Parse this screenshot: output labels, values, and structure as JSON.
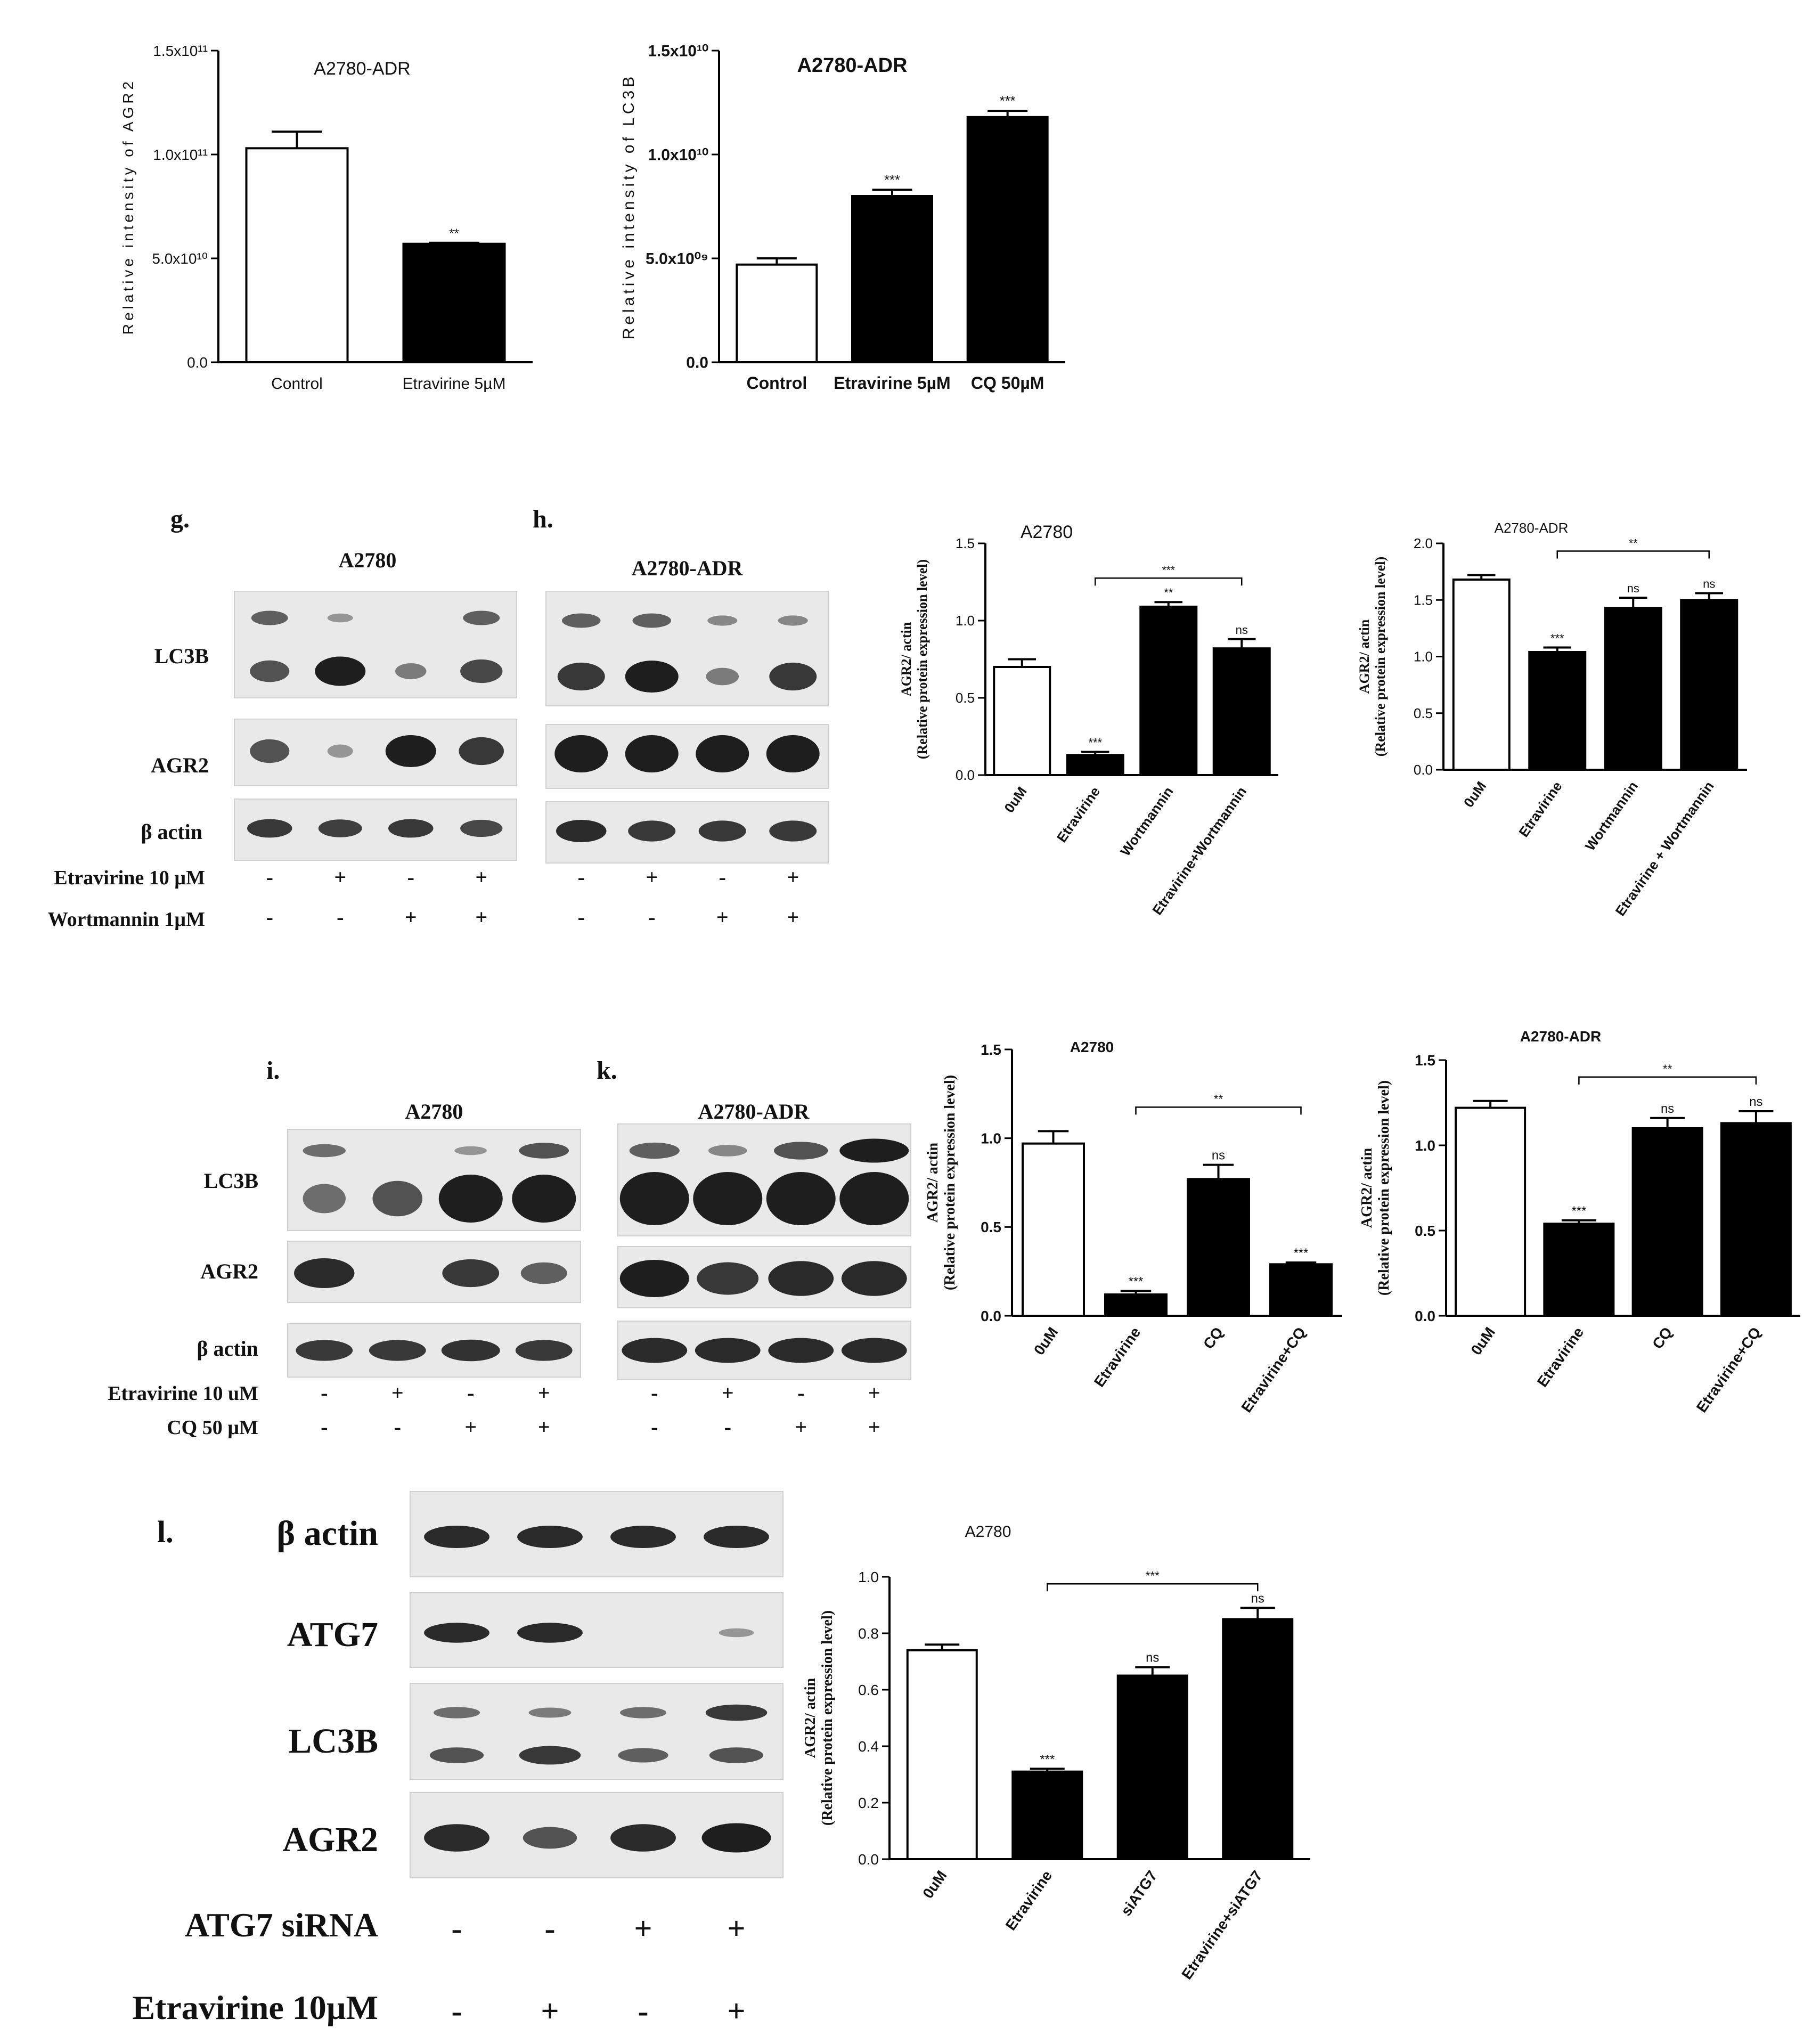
{
  "panels": {
    "top_left": {
      "title": "A2780-ADR"
    },
    "top_right": {
      "title": "A2780-ADR"
    },
    "g": {
      "letter": "g.",
      "cell_line": "A2780",
      "rows": [
        "LC3B",
        "AGR2",
        "β actin"
      ],
      "treat1_label": "Etravirine 10 µM",
      "treat2_label": "Wortmannin 1µM",
      "treat1": [
        "-",
        "+",
        "-",
        "+"
      ],
      "treat2": [
        "-",
        "-",
        "+",
        "+"
      ],
      "bands": {
        "LC3B_upper": [
          0.5,
          0.1,
          0.0,
          0.5
        ],
        "LC3B_lower": [
          0.6,
          1.0,
          0.3,
          0.7
        ],
        "AGR2": [
          0.6,
          0.1,
          1.0,
          0.8
        ],
        "actin": [
          0.8,
          0.75,
          0.8,
          0.7
        ]
      }
    },
    "h": {
      "letter": "h.",
      "cell_line": "A2780-ADR",
      "treat1": [
        "-",
        "+",
        "-",
        "+"
      ],
      "treat2": [
        "-",
        "-",
        "+",
        "+"
      ],
      "bands": {
        "LC3B_upper": [
          0.5,
          0.5,
          0.2,
          0.2
        ],
        "LC3B_lower": [
          0.8,
          1.0,
          0.3,
          0.8
        ],
        "AGR2": [
          1.0,
          1.0,
          1.0,
          1.0
        ],
        "actin": [
          0.9,
          0.8,
          0.8,
          0.8
        ]
      }
    },
    "i": {
      "letter": "i.",
      "cell_line": "A2780",
      "rows": [
        "LC3B",
        "AGR2",
        "β actin"
      ],
      "treat1_label": "Etravirine 10 uM",
      "treat2_label": "CQ 50 µM",
      "treat1": [
        "-",
        "+",
        "-",
        "+"
      ],
      "treat2": [
        "-",
        "-",
        "+",
        "+"
      ],
      "bands": {
        "LC3B_upper": [
          0.4,
          0.0,
          0.1,
          0.6
        ],
        "LC3B_lower": [
          0.4,
          0.6,
          1.0,
          1.0
        ],
        "AGR2": [
          0.9,
          0.0,
          0.8,
          0.5
        ],
        "actin": [
          0.8,
          0.8,
          0.85,
          0.8
        ]
      }
    },
    "k": {
      "letter": "k.",
      "cell_line": "A2780-ADR",
      "treat1": [
        "-",
        "+",
        "-",
        "+"
      ],
      "treat2": [
        "-",
        "-",
        "+",
        "+"
      ],
      "bands": {
        "LC3B_upper": [
          0.5,
          0.2,
          0.6,
          1.0
        ],
        "LC3B_lower": [
          1.0,
          1.0,
          1.0,
          1.0
        ],
        "AGR2": [
          1.0,
          0.8,
          0.9,
          0.9
        ],
        "actin": [
          0.9,
          0.9,
          0.9,
          0.9
        ]
      }
    },
    "l": {
      "letter": "l.",
      "rows": [
        "β actin",
        "ATG7",
        "LC3B",
        "AGR2"
      ],
      "treat1_label": "ATG7 siRNA",
      "treat2_label": "Etravirine 10µM",
      "treat1": [
        "-",
        "-",
        "+",
        "+"
      ],
      "treat2": [
        "-",
        "+",
        "-",
        "+"
      ],
      "bands": {
        "actin": [
          0.9,
          0.9,
          0.9,
          0.9
        ],
        "ATG7": [
          0.9,
          0.9,
          0.0,
          0.1
        ],
        "LC3B_upper": [
          0.4,
          0.3,
          0.4,
          0.8
        ],
        "LC3B_lower": [
          0.6,
          0.8,
          0.5,
          0.6
        ],
        "AGR2": [
          0.9,
          0.6,
          0.9,
          1.0
        ]
      }
    }
  },
  "chart_data": [
    {
      "id": "chart1",
      "type": "bar",
      "title": "A2780-ADR",
      "ylabel": "Relative intensity of AGR2",
      "categories": [
        "Control",
        "Etravirine 5µM"
      ],
      "values": [
        103000000000.0,
        57000000000.0
      ],
      "errors": [
        8000000000.0,
        500000000.0
      ],
      "fills": [
        "#ffffff",
        "#000000"
      ],
      "annotations": [
        "",
        "**"
      ],
      "ylim": [
        0,
        150000000000.0
      ],
      "yticks": [
        0,
        50000000000.0,
        100000000000.0,
        150000000000.0
      ],
      "ytick_labels": [
        "0.0",
        "5.0x10¹⁰",
        "1.0x10¹¹",
        "1.5x10¹¹"
      ]
    },
    {
      "id": "chart2",
      "type": "bar",
      "title": "A2780-ADR",
      "ylabel": "Relative intensity of LC3B",
      "categories": [
        "Control",
        "Etravirine 5µM",
        "CQ 50µM"
      ],
      "values": [
        4700000000.0,
        8000000000.0,
        11800000000.0
      ],
      "errors": [
        300000000.0,
        300000000.0,
        300000000.0
      ],
      "fills": [
        "#ffffff",
        "#000000",
        "#000000"
      ],
      "annotations": [
        "",
        "***",
        "***"
      ],
      "ylim": [
        0,
        15000000000.0
      ],
      "yticks": [
        0,
        5000000000.0,
        10000000000.0,
        15000000000.0
      ],
      "ytick_labels": [
        "0.0",
        "5.0x10⁰⁹",
        "1.0x10¹⁰",
        "1.5x10¹⁰"
      ]
    },
    {
      "id": "chart3",
      "type": "bar",
      "title": "A2780",
      "ylabel": "AGR2/ actin",
      "ylabel2": "(Relative protein expression level)",
      "categories": [
        "0uM",
        "Etravirine",
        "Wortmannin",
        "Etravirine+Wortmannin"
      ],
      "values": [
        0.7,
        0.13,
        1.09,
        0.82
      ],
      "errors": [
        0.05,
        0.02,
        0.03,
        0.06
      ],
      "fills": [
        "#ffffff",
        "#000000",
        "#000000",
        "#000000"
      ],
      "annotations": [
        "",
        "***",
        "**",
        "ns"
      ],
      "bracket": {
        "from": 1,
        "to": 3,
        "label": "***"
      },
      "ylim": [
        0,
        1.5
      ],
      "yticks": [
        0,
        0.5,
        1.0,
        1.5
      ],
      "ytick_labels": [
        "0.0",
        "0.5",
        "1.0",
        "1.5"
      ]
    },
    {
      "id": "chart4",
      "type": "bar",
      "title": "A2780-ADR",
      "ylabel": "AGR2/ actin",
      "ylabel2": "(Relative protein expression level)",
      "categories": [
        "0uM",
        "Etravirine",
        "Wortmannin",
        "Etravirine + Wortmannin"
      ],
      "values": [
        1.68,
        1.04,
        1.43,
        1.5
      ],
      "errors": [
        0.04,
        0.04,
        0.09,
        0.06
      ],
      "fills": [
        "#ffffff",
        "#000000",
        "#000000",
        "#000000"
      ],
      "annotations": [
        "",
        "***",
        "ns",
        "ns"
      ],
      "bracket": {
        "from": 1,
        "to": 3,
        "label": "**"
      },
      "ylim": [
        0,
        2.0
      ],
      "yticks": [
        0,
        0.5,
        1.0,
        1.5,
        2.0
      ],
      "ytick_labels": [
        "0.0",
        "0.5",
        "1.0",
        "1.5",
        "2.0"
      ]
    },
    {
      "id": "chart5",
      "type": "bar",
      "title": "A2780",
      "ylabel": "AGR2/ actin",
      "ylabel2": "(Relative protein expression level)",
      "categories": [
        "0uM",
        "Etravirine",
        "CQ",
        "Etravirine+CQ"
      ],
      "values": [
        0.97,
        0.12,
        0.77,
        0.29
      ],
      "errors": [
        0.07,
        0.02,
        0.08,
        0.01
      ],
      "fills": [
        "#ffffff",
        "#000000",
        "#000000",
        "#000000"
      ],
      "annotations": [
        "",
        "***",
        "ns",
        "***"
      ],
      "bracket": {
        "from": 1,
        "to": 3,
        "label": "**"
      },
      "ylim": [
        0,
        1.5
      ],
      "yticks": [
        0,
        0.5,
        1.0,
        1.5
      ],
      "ytick_labels": [
        "0.0",
        "0.5",
        "1.0",
        "1.5"
      ]
    },
    {
      "id": "chart6",
      "type": "bar",
      "title": "A2780-ADR",
      "ylabel": "AGR2/ actin",
      "ylabel2": "(Relative protein expression level)",
      "categories": [
        "0uM",
        "Etravirine",
        "CQ",
        "Etravirine+CQ"
      ],
      "values": [
        1.22,
        0.54,
        1.1,
        1.13
      ],
      "errors": [
        0.04,
        0.02,
        0.06,
        0.07
      ],
      "fills": [
        "#ffffff",
        "#000000",
        "#000000",
        "#000000"
      ],
      "annotations": [
        "",
        "***",
        "ns",
        "ns"
      ],
      "bracket": {
        "from": 1,
        "to": 3,
        "label": "**"
      },
      "ylim": [
        0,
        1.5
      ],
      "yticks": [
        0,
        0.5,
        1.0,
        1.5
      ],
      "ytick_labels": [
        "0.0",
        "0.5",
        "1.0",
        "1.5"
      ]
    },
    {
      "id": "chart7",
      "type": "bar",
      "title": "A2780",
      "ylabel": "AGR2/ actin",
      "ylabel2": "(Relative protein expression level)",
      "categories": [
        "0uM",
        "Etravirine",
        "siATG7",
        "Etravirine+siATG7"
      ],
      "values": [
        0.74,
        0.31,
        0.65,
        0.85
      ],
      "errors": [
        0.02,
        0.01,
        0.03,
        0.04
      ],
      "fills": [
        "#ffffff",
        "#000000",
        "#000000",
        "#000000"
      ],
      "annotations": [
        "",
        "***",
        "ns",
        "ns"
      ],
      "bracket": {
        "from": 1,
        "to": 3,
        "label": "***"
      },
      "ylim": [
        0,
        1.0
      ],
      "yticks": [
        0,
        0.2,
        0.4,
        0.6,
        0.8,
        1.0
      ],
      "ytick_labels": [
        "0.0",
        "0.2",
        "0.4",
        "0.6",
        "0.8",
        "1.0"
      ]
    }
  ]
}
